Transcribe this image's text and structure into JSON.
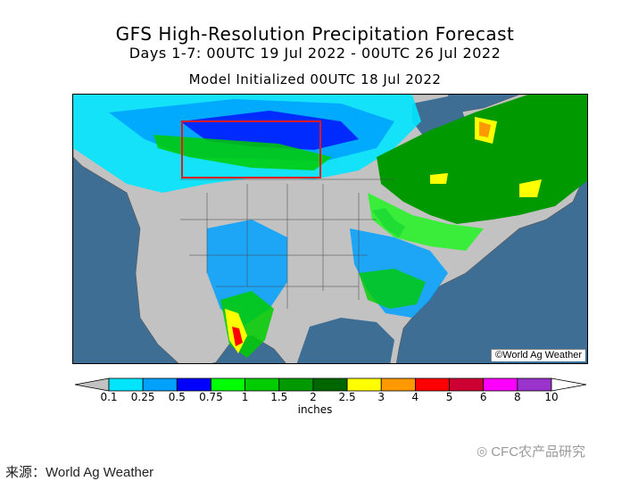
{
  "header": {
    "title": "GFS High-Resolution Precipitation Forecast",
    "period": "Days 1-7: 00UTC 19 Jul 2022 - 00UTC 26 Jul 2022",
    "init": "Model Initialized 00UTC 18 Jul 2022"
  },
  "map": {
    "copyright": "©World Ag Weather",
    "highlight_color": "#e11b1b",
    "ocean_color": "#3f6e95",
    "land_color": "#c2c2c2"
  },
  "legend": {
    "units": "inches",
    "ticks": [
      "0.1",
      "0.25",
      "0.5",
      "0.75",
      "1",
      "1.5",
      "2",
      "2.5",
      "3",
      "4",
      "5",
      "6",
      "8",
      "10"
    ],
    "colors": [
      "#00e5ff",
      "#00a0ff",
      "#0000ff",
      "#00ff00",
      "#00cc00",
      "#009900",
      "#006600",
      "#ffff00",
      "#ff9900",
      "#ff0000",
      "#cc0033",
      "#ff00ff",
      "#9933cc"
    ]
  },
  "watermark": "CFC农产品研究",
  "source": "来源：World Ag Weather"
}
